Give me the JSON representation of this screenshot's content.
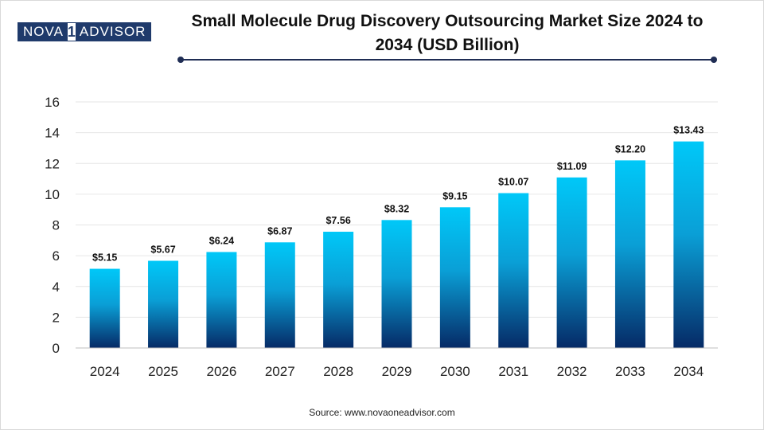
{
  "brand": {
    "part1": "NOVA",
    "part2": "1",
    "part3": "ADVISOR"
  },
  "source": "Source: www.novaoneadvisor.com",
  "chart_data": {
    "type": "bar",
    "title": "Small Molecule Drug Discovery Outsourcing Market Size 2024 to 2034 (USD Billion)",
    "title_line1": "Small Molecule Drug Discovery Outsourcing Market Size 2024 to",
    "title_line2": "2034 (USD Billion)",
    "xlabel": "",
    "ylabel": "",
    "categories": [
      "2024",
      "2025",
      "2026",
      "2027",
      "2028",
      "2029",
      "2030",
      "2031",
      "2032",
      "2033",
      "2034"
    ],
    "values": [
      5.15,
      5.67,
      6.24,
      6.87,
      7.56,
      8.32,
      9.15,
      10.07,
      11.09,
      12.2,
      13.43
    ],
    "data_labels": [
      "$5.15",
      "$5.67",
      "$6.24",
      "$6.87",
      "$7.56",
      "$8.32",
      "$9.15",
      "$10.07",
      "$11.09",
      "$12.20",
      "$13.43"
    ],
    "ylim": [
      0,
      16
    ],
    "yticks": [
      0,
      2,
      4,
      6,
      8,
      10,
      12,
      14,
      16
    ],
    "grid": true,
    "colors": {
      "bar_top": "#00c8f8",
      "bar_bottom": "#062a66",
      "grid": "#e6e6e6",
      "axis": "#bfbfbf"
    }
  }
}
